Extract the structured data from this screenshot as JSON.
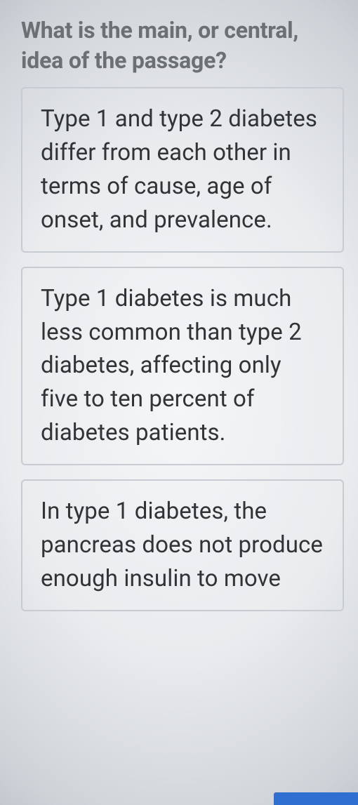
{
  "quiz": {
    "question": "What is the main, or central, idea of the passage?",
    "options": [
      {
        "text": "Type 1 and type 2 diabetes differ from each other in terms of cause, age of onset, and prevalence."
      },
      {
        "text": "Type 1 diabetes is much less common than type 2 diabetes, affecting only five to ten percent of diabetes patients."
      },
      {
        "text": "In type 1 diabetes, the pancreas does not produce enough insulin to move"
      }
    ]
  }
}
